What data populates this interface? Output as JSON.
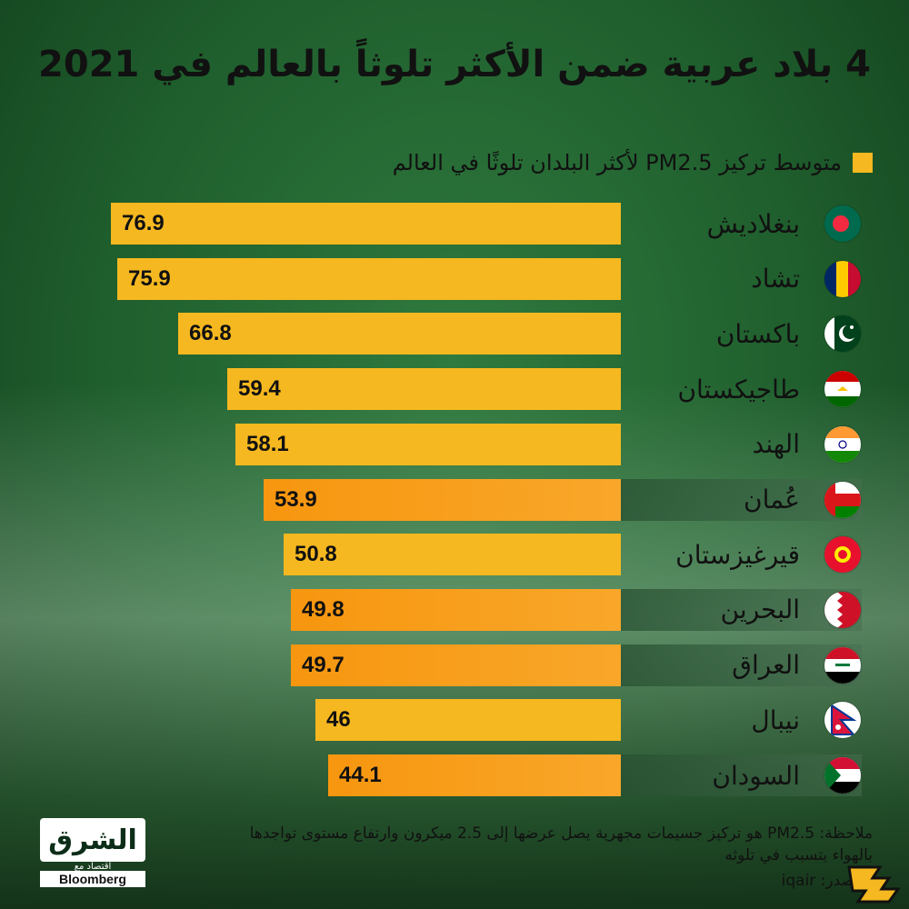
{
  "title": "4 بلاد عربية ضمن الأكثر تلوثاً بالعالم في 2021",
  "colors": {
    "bar_default": "#f6b820",
    "bar_arab": "#f7960f",
    "legend": "#f6b820"
  },
  "chart_data": {
    "type": "bar",
    "orientation": "horizontal",
    "legend": "متوسط تركيز PM2.5 لأكثر البلدان تلوثًا في العالم",
    "legend_position": "top-right",
    "grid": false,
    "xlim": [
      0,
      80
    ],
    "categories": [
      "بنغلاديش",
      "تشاد",
      "باكستان",
      "طاجيكستان",
      "الهند",
      "عُمان",
      "قيرغيزستان",
      "البحرين",
      "العراق",
      "نيبال",
      "السودان"
    ],
    "values": [
      76.9,
      75.9,
      66.8,
      59.4,
      58.1,
      53.9,
      50.8,
      49.8,
      49.7,
      46,
      44.1
    ],
    "value_labels": [
      "76.9",
      "75.9",
      "66.8",
      "59.4",
      "58.1",
      "53.9",
      "50.8",
      "49.8",
      "49.7",
      "46",
      "44.1"
    ],
    "highlighted": [
      false,
      false,
      false,
      false,
      false,
      true,
      false,
      true,
      true,
      false,
      true
    ],
    "flags": [
      "bangladesh-flag-icon",
      "chad-flag-icon",
      "pakistan-flag-icon",
      "tajikistan-flag-icon",
      "india-flag-icon",
      "oman-flag-icon",
      "kyrgyzstan-flag-icon",
      "bahrain-flag-icon",
      "iraq-flag-icon",
      "nepal-flag-icon",
      "sudan-flag-icon"
    ]
  },
  "note": "ملاحظة: PM2.5 هو تركيز جسيمات مجهرية يصل عرضها إلى 2.5 ميكرون وارتفاع مستوى تواجدها بالهواء يتسبب في تلوثه",
  "source": "المصدر: iqair",
  "logo": {
    "main": "الشرق",
    "sub": "اقتصاد مع",
    "partner": "Bloomberg"
  }
}
